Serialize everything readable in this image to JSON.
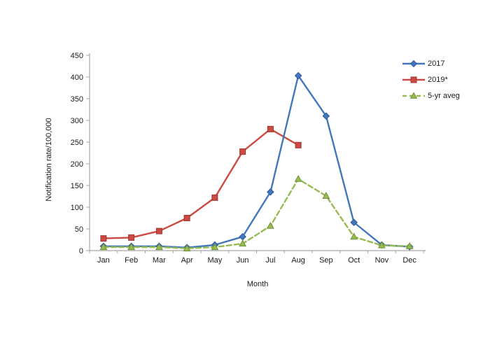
{
  "chart_data": {
    "type": "line",
    "title": "",
    "xlabel": "Month",
    "ylabel": "Notification rate/100,000",
    "categories": [
      "Jan",
      "Feb",
      "Mar",
      "Apr",
      "May",
      "Jun",
      "Jul",
      "Aug",
      "Sep",
      "Oct",
      "Nov",
      "Dec"
    ],
    "ylim": [
      0,
      450
    ],
    "ytick_step": 50,
    "grid": false,
    "legend_position": "top-right",
    "axis_color": "#a6a6a6",
    "text_color": "#1a1a1a",
    "series": [
      {
        "name": "2017",
        "color": "#4277bd",
        "marker_stroke": "#2e5b94",
        "marker": "diamond",
        "dash": "solid",
        "values": [
          10,
          10,
          10,
          7,
          13,
          32,
          135,
          403,
          310,
          65,
          13,
          9
        ]
      },
      {
        "name": "2019*",
        "color": "#cd4a42",
        "marker_stroke": "#9c352f",
        "marker": "square",
        "dash": "solid",
        "values": [
          28,
          30,
          45,
          75,
          122,
          228,
          280,
          243,
          null,
          null,
          null,
          null
        ]
      },
      {
        "name": "5-yr aveg",
        "color": "#97bb50",
        "marker_stroke": "#71923b",
        "marker": "triangle",
        "dash": "dashed",
        "values": [
          8,
          8,
          8,
          5,
          8,
          16,
          57,
          165,
          126,
          32,
          12,
          10
        ]
      }
    ]
  }
}
